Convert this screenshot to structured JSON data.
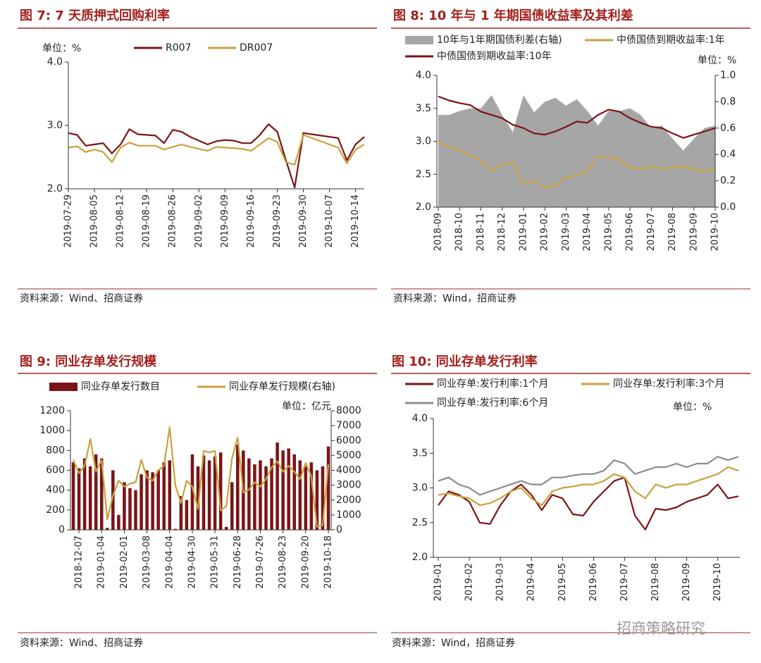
{
  "chart_data": [
    {
      "type": "line",
      "title": "图 7: 7 天质押式回购利率",
      "unit_label": "单位：%",
      "source": "资料来源：Wind、招商证券",
      "categories": [
        "2019-07-29",
        null,
        null,
        "2019-08-05",
        null,
        null,
        "2019-08-12",
        null,
        null,
        "2019-08-19",
        null,
        null,
        "2019-08-26",
        null,
        null,
        "2019-09-02",
        null,
        null,
        "2019-09-09",
        null,
        null,
        "2019-09-16",
        null,
        null,
        "2019-09-23",
        null,
        null,
        "2019-09-30",
        null,
        null,
        "2019-10-07",
        null,
        null,
        "2019-10-14",
        null
      ],
      "ylim": [
        2,
        4
      ],
      "yticks": [
        {
          "value": 2,
          "label": "2.0"
        },
        {
          "value": 3,
          "label": "3.0"
        },
        {
          "value": 4,
          "label": "4.0"
        }
      ],
      "series": [
        {
          "name": "R007",
          "type": "line",
          "color": "#7b1416",
          "values": [
            2.88,
            2.85,
            2.68,
            2.7,
            2.72,
            2.56,
            2.7,
            2.94,
            2.86,
            2.85,
            2.84,
            2.72,
            2.93,
            2.9,
            2.82,
            2.76,
            2.7,
            2.75,
            2.77,
            2.76,
            2.72,
            2.72,
            2.85,
            3.02,
            2.9,
            2.45,
            2.02,
            2.88,
            2.86,
            2.84,
            2.82,
            2.8,
            2.45,
            2.7,
            2.82
          ]
        },
        {
          "name": "DR007",
          "type": "line",
          "color": "#c9a23c",
          "values": [
            2.65,
            2.67,
            2.58,
            2.62,
            2.58,
            2.42,
            2.65,
            2.73,
            2.68,
            2.68,
            2.68,
            2.62,
            2.66,
            2.7,
            2.66,
            2.63,
            2.6,
            2.66,
            2.65,
            2.64,
            2.63,
            2.6,
            2.7,
            2.8,
            2.74,
            2.42,
            2.38,
            2.85,
            2.8,
            2.75,
            2.7,
            2.65,
            2.4,
            2.62,
            2.7
          ]
        }
      ]
    },
    {
      "type": "combo",
      "title": "图 8: 10 年与 1 年期国债收益率及其利差",
      "unit_label": "单位：%",
      "source": "资料来源：Wind，招商证券",
      "categories": [
        "2018-09",
        null,
        "2018-10",
        null,
        "2018-11",
        null,
        "2018-12",
        null,
        "2019-01",
        null,
        "2019-02",
        null,
        "2019-03",
        null,
        "2019-04",
        null,
        "2019-05",
        null,
        "2019-06",
        null,
        "2019-07",
        null,
        "2019-08",
        null,
        "2019-09",
        null,
        "2019-10"
      ],
      "ylim": [
        2,
        4
      ],
      "yticks": [
        {
          "value": 2,
          "label": "2.0"
        },
        {
          "value": 2.5,
          "label": "2.5"
        },
        {
          "value": 3,
          "label": "3.0"
        },
        {
          "value": 3.5,
          "label": "3.5"
        },
        {
          "value": 4,
          "label": "4.0"
        }
      ],
      "y2lim": [
        0,
        1
      ],
      "y2ticks": [
        {
          "value": 0,
          "label": "0.0"
        },
        0.2,
        0.4,
        0.6,
        0.8,
        {
          "value": 1,
          "label": "1.0"
        }
      ],
      "series": [
        {
          "name": "10年与1年期国债利差(右轴)",
          "type": "area",
          "axis": "y2",
          "color": "#a6a6a6",
          "values": [
            0.7,
            0.7,
            0.73,
            0.75,
            0.75,
            0.85,
            0.7,
            0.57,
            0.85,
            0.72,
            0.8,
            0.83,
            0.77,
            0.82,
            0.73,
            0.62,
            0.73,
            0.73,
            0.75,
            0.7,
            0.6,
            0.62,
            0.52,
            0.43,
            0.52,
            0.6,
            0.62
          ]
        },
        {
          "name": "中债国债到期收益率:1年",
          "type": "line",
          "color": "#c9a23c",
          "values": [
            2.98,
            2.92,
            2.85,
            2.8,
            2.7,
            2.55,
            2.65,
            2.68,
            2.35,
            2.4,
            2.3,
            2.32,
            2.45,
            2.48,
            2.55,
            2.78,
            2.75,
            2.72,
            2.6,
            2.58,
            2.62,
            2.58,
            2.6,
            2.62,
            2.58,
            2.55,
            2.58
          ]
        },
        {
          "name": "中债国债到期收益率:10年",
          "type": "line",
          "color": "#7b1416",
          "values": [
            3.68,
            3.62,
            3.58,
            3.55,
            3.45,
            3.4,
            3.35,
            3.25,
            3.2,
            3.12,
            3.1,
            3.15,
            3.22,
            3.3,
            3.28,
            3.4,
            3.48,
            3.45,
            3.35,
            3.28,
            3.22,
            3.2,
            3.12,
            3.05,
            3.1,
            3.15,
            3.2
          ]
        }
      ]
    },
    {
      "type": "combo",
      "title": "图 9: 同业存单发行规模",
      "unit_label": "单位：亿元",
      "source": "资料来源：Wind、招商证券",
      "categories": [
        null,
        "2018-12-07",
        null,
        null,
        null,
        "2019-01-04",
        null,
        null,
        null,
        "2019-02-01",
        null,
        null,
        null,
        "2019-03-08",
        null,
        null,
        null,
        "2019-04-04",
        null,
        null,
        null,
        "2019-04-30",
        null,
        null,
        null,
        "2019-05-31",
        null,
        null,
        null,
        "2019-06-28",
        null,
        null,
        null,
        "2019-07-26",
        null,
        null,
        null,
        "2019-08-23",
        null,
        null,
        null,
        "2019-09-20",
        null,
        null,
        null,
        "2019-10-18"
      ],
      "ylim": [
        0,
        1200
      ],
      "yticks": [
        0,
        200,
        400,
        600,
        800,
        1000,
        1200
      ],
      "y2lim": [
        0,
        8000
      ],
      "y2ticks": [
        0,
        1000,
        2000,
        3000,
        4000,
        5000,
        6000,
        7000,
        8000
      ],
      "series": [
        {
          "name": "同业存单发行数目",
          "type": "bar",
          "color": "#7b1416",
          "values": [
            680,
            620,
            720,
            640,
            760,
            720,
            20,
            600,
            150,
            480,
            420,
            400,
            560,
            600,
            580,
            600,
            680,
            700,
            10,
            340,
            300,
            760,
            640,
            750,
            700,
            740,
            780,
            30,
            480,
            860,
            800,
            720,
            660,
            700,
            640,
            720,
            880,
            800,
            820,
            760,
            700,
            640,
            680,
            600,
            640,
            840
          ]
        },
        {
          "name": "同业存单发行规模(右轴)",
          "type": "line",
          "axis": "y2",
          "color": "#c9a23c",
          "values": [
            4700,
            3800,
            4300,
            6100,
            3900,
            4700,
            700,
            2300,
            3300,
            2900,
            3100,
            3200,
            4700,
            3500,
            3300,
            4000,
            4300,
            6900,
            3000,
            1800,
            3300,
            2900,
            1400,
            5300,
            5200,
            5300,
            1300,
            1600,
            4800,
            6200,
            2500,
            2700,
            3200,
            2900,
            3400,
            4200,
            4600,
            3900,
            4300,
            3900,
            3400,
            4500,
            3600,
            200,
            300,
            4400
          ]
        }
      ]
    },
    {
      "type": "line",
      "title": "图 10: 同业存单发行利率",
      "unit_label": "单位：%",
      "source": "资料来源：Wind，招商证券",
      "categories": [
        "2019-01",
        null,
        null,
        "2019-02",
        null,
        null,
        "2019-03",
        null,
        null,
        "2019-04",
        null,
        null,
        "2019-05",
        null,
        null,
        "2019-06",
        null,
        null,
        "2019-07",
        null,
        null,
        "2019-08",
        null,
        null,
        "2019-09",
        null,
        null,
        "2019-10",
        null,
        null
      ],
      "ylim": [
        2,
        4
      ],
      "yticks": [
        {
          "value": 2,
          "label": "2.0"
        },
        {
          "value": 2.5,
          "label": "2.5"
        },
        {
          "value": 3,
          "label": "3.0"
        },
        {
          "value": 3.5,
          "label": "3.5"
        },
        {
          "value": 4,
          "label": "4.0"
        }
      ],
      "series": [
        {
          "name": "同业存单:发行利率:1个月",
          "type": "line",
          "color": "#7b1416",
          "values": [
            2.75,
            2.95,
            2.9,
            2.8,
            2.5,
            2.48,
            2.75,
            2.95,
            3.05,
            2.9,
            2.68,
            2.9,
            2.85,
            2.62,
            2.6,
            2.8,
            2.95,
            3.1,
            3.15,
            2.6,
            2.4,
            2.7,
            2.68,
            2.72,
            2.8,
            2.85,
            2.9,
            3.05,
            2.85,
            2.88
          ]
        },
        {
          "name": "同业存单:发行利率:3个月",
          "type": "line",
          "color": "#c9a23c",
          "values": [
            2.9,
            2.92,
            2.88,
            2.85,
            2.75,
            2.78,
            2.85,
            2.95,
            3.0,
            2.85,
            2.75,
            2.95,
            3.0,
            3.02,
            3.05,
            3.05,
            3.1,
            3.2,
            3.15,
            2.95,
            2.85,
            3.05,
            3.0,
            3.05,
            3.05,
            3.1,
            3.15,
            3.2,
            3.3,
            3.25
          ]
        },
        {
          "name": "同业存单:发行利率:6个月",
          "type": "line",
          "color": "#8c8c8c",
          "values": [
            3.1,
            3.15,
            3.05,
            3.0,
            2.9,
            2.95,
            3.0,
            3.05,
            3.1,
            3.05,
            3.05,
            3.15,
            3.15,
            3.18,
            3.2,
            3.2,
            3.25,
            3.4,
            3.35,
            3.2,
            3.25,
            3.3,
            3.3,
            3.35,
            3.3,
            3.35,
            3.35,
            3.45,
            3.4,
            3.45
          ]
        }
      ]
    }
  ],
  "watermark": "招商策略研究"
}
